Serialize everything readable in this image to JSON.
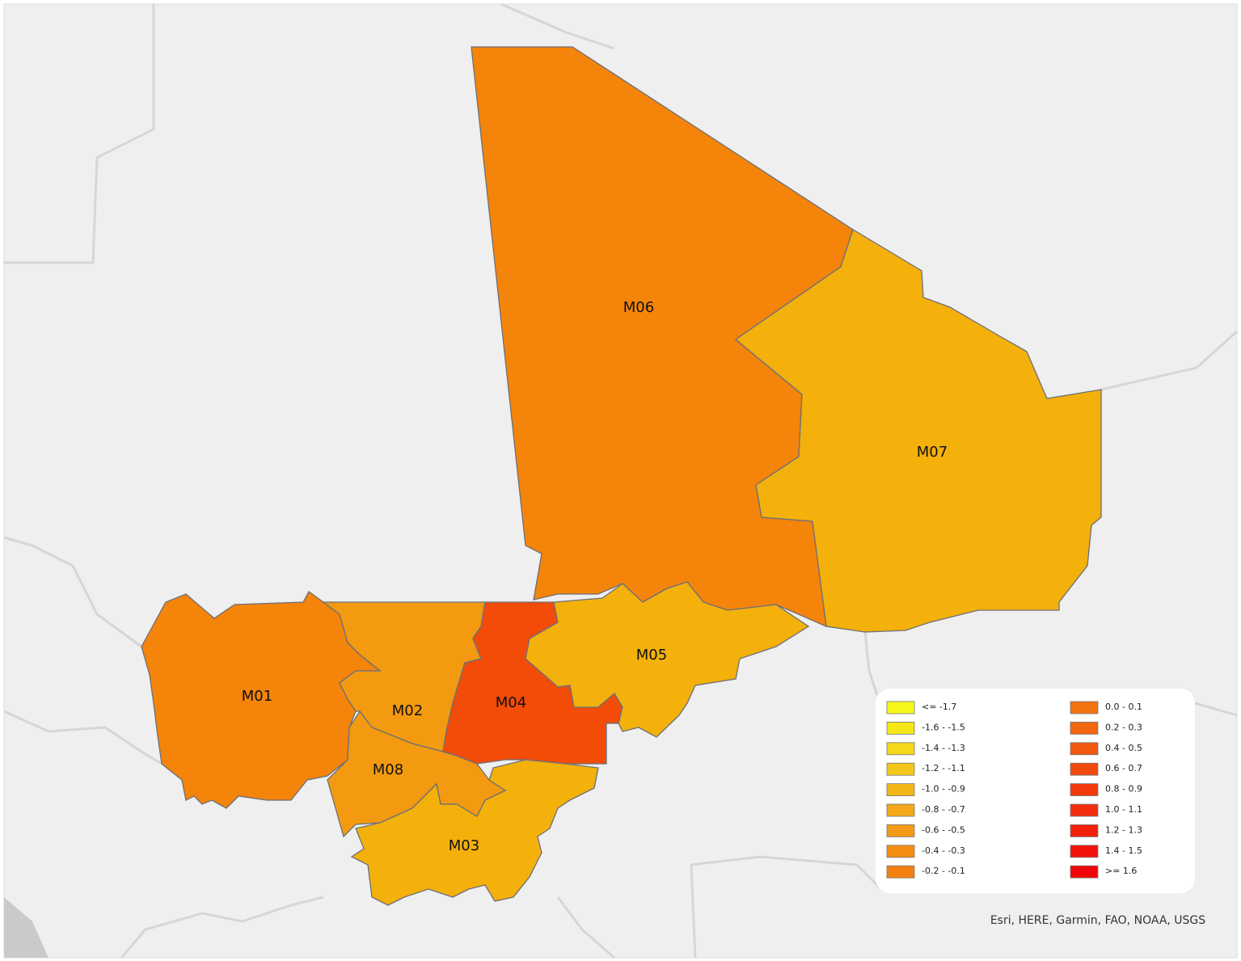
{
  "regions": [
    {
      "label": "M06",
      "color": "#f5840a"
    },
    {
      "label": "M07",
      "color": "#f4b00b"
    },
    {
      "label": "M01",
      "color": "#f5840a"
    },
    {
      "label": "M02",
      "color": "#f39a10"
    },
    {
      "label": "M08",
      "color": "#f39a10"
    },
    {
      "label": "M04",
      "color": "#f34c08"
    },
    {
      "label": "M05",
      "color": "#f4b00b"
    },
    {
      "label": "M03",
      "color": "#f4b00b"
    }
  ],
  "legend": {
    "items": [
      {
        "label": "<= -1.7",
        "color": "#f7f71a"
      },
      {
        "label": "-1.6 - -1.5",
        "color": "#f5e619"
      },
      {
        "label": "-1.4 - -1.3",
        "color": "#f4d81a"
      },
      {
        "label": "-1.2 - -1.1",
        "color": "#f3c81a"
      },
      {
        "label": "-1.0 - -0.9",
        "color": "#f3b719"
      },
      {
        "label": "-0.8 - -0.7",
        "color": "#f3a91a"
      },
      {
        "label": "-0.6 - -0.5",
        "color": "#f39a17"
      },
      {
        "label": "-0.4 - -0.3",
        "color": "#f38c12"
      },
      {
        "label": "-0.2 - -0.1",
        "color": "#f28010"
      },
      {
        "label": "0.0 - 0.1",
        "color": "#f27310"
      },
      {
        "label": "0.2 - 0.3",
        "color": "#f26610"
      },
      {
        "label": "0.4 - 0.5",
        "color": "#f2580f"
      },
      {
        "label": "0.6 - 0.7",
        "color": "#f24a0e"
      },
      {
        "label": "0.8 - 0.9",
        "color": "#f23c0d"
      },
      {
        "label": "1.0 - 1.1",
        "color": "#f22e0c"
      },
      {
        "label": "1.2 - 1.3",
        "color": "#f2200b"
      },
      {
        "label": "1.4 - 1.5",
        "color": "#f2120a"
      },
      {
        "label": ">= 1.6",
        "color": "#f20509"
      }
    ]
  },
  "attribution": "Esri, HERE, Garmin, FAO, NOAA, USGS"
}
